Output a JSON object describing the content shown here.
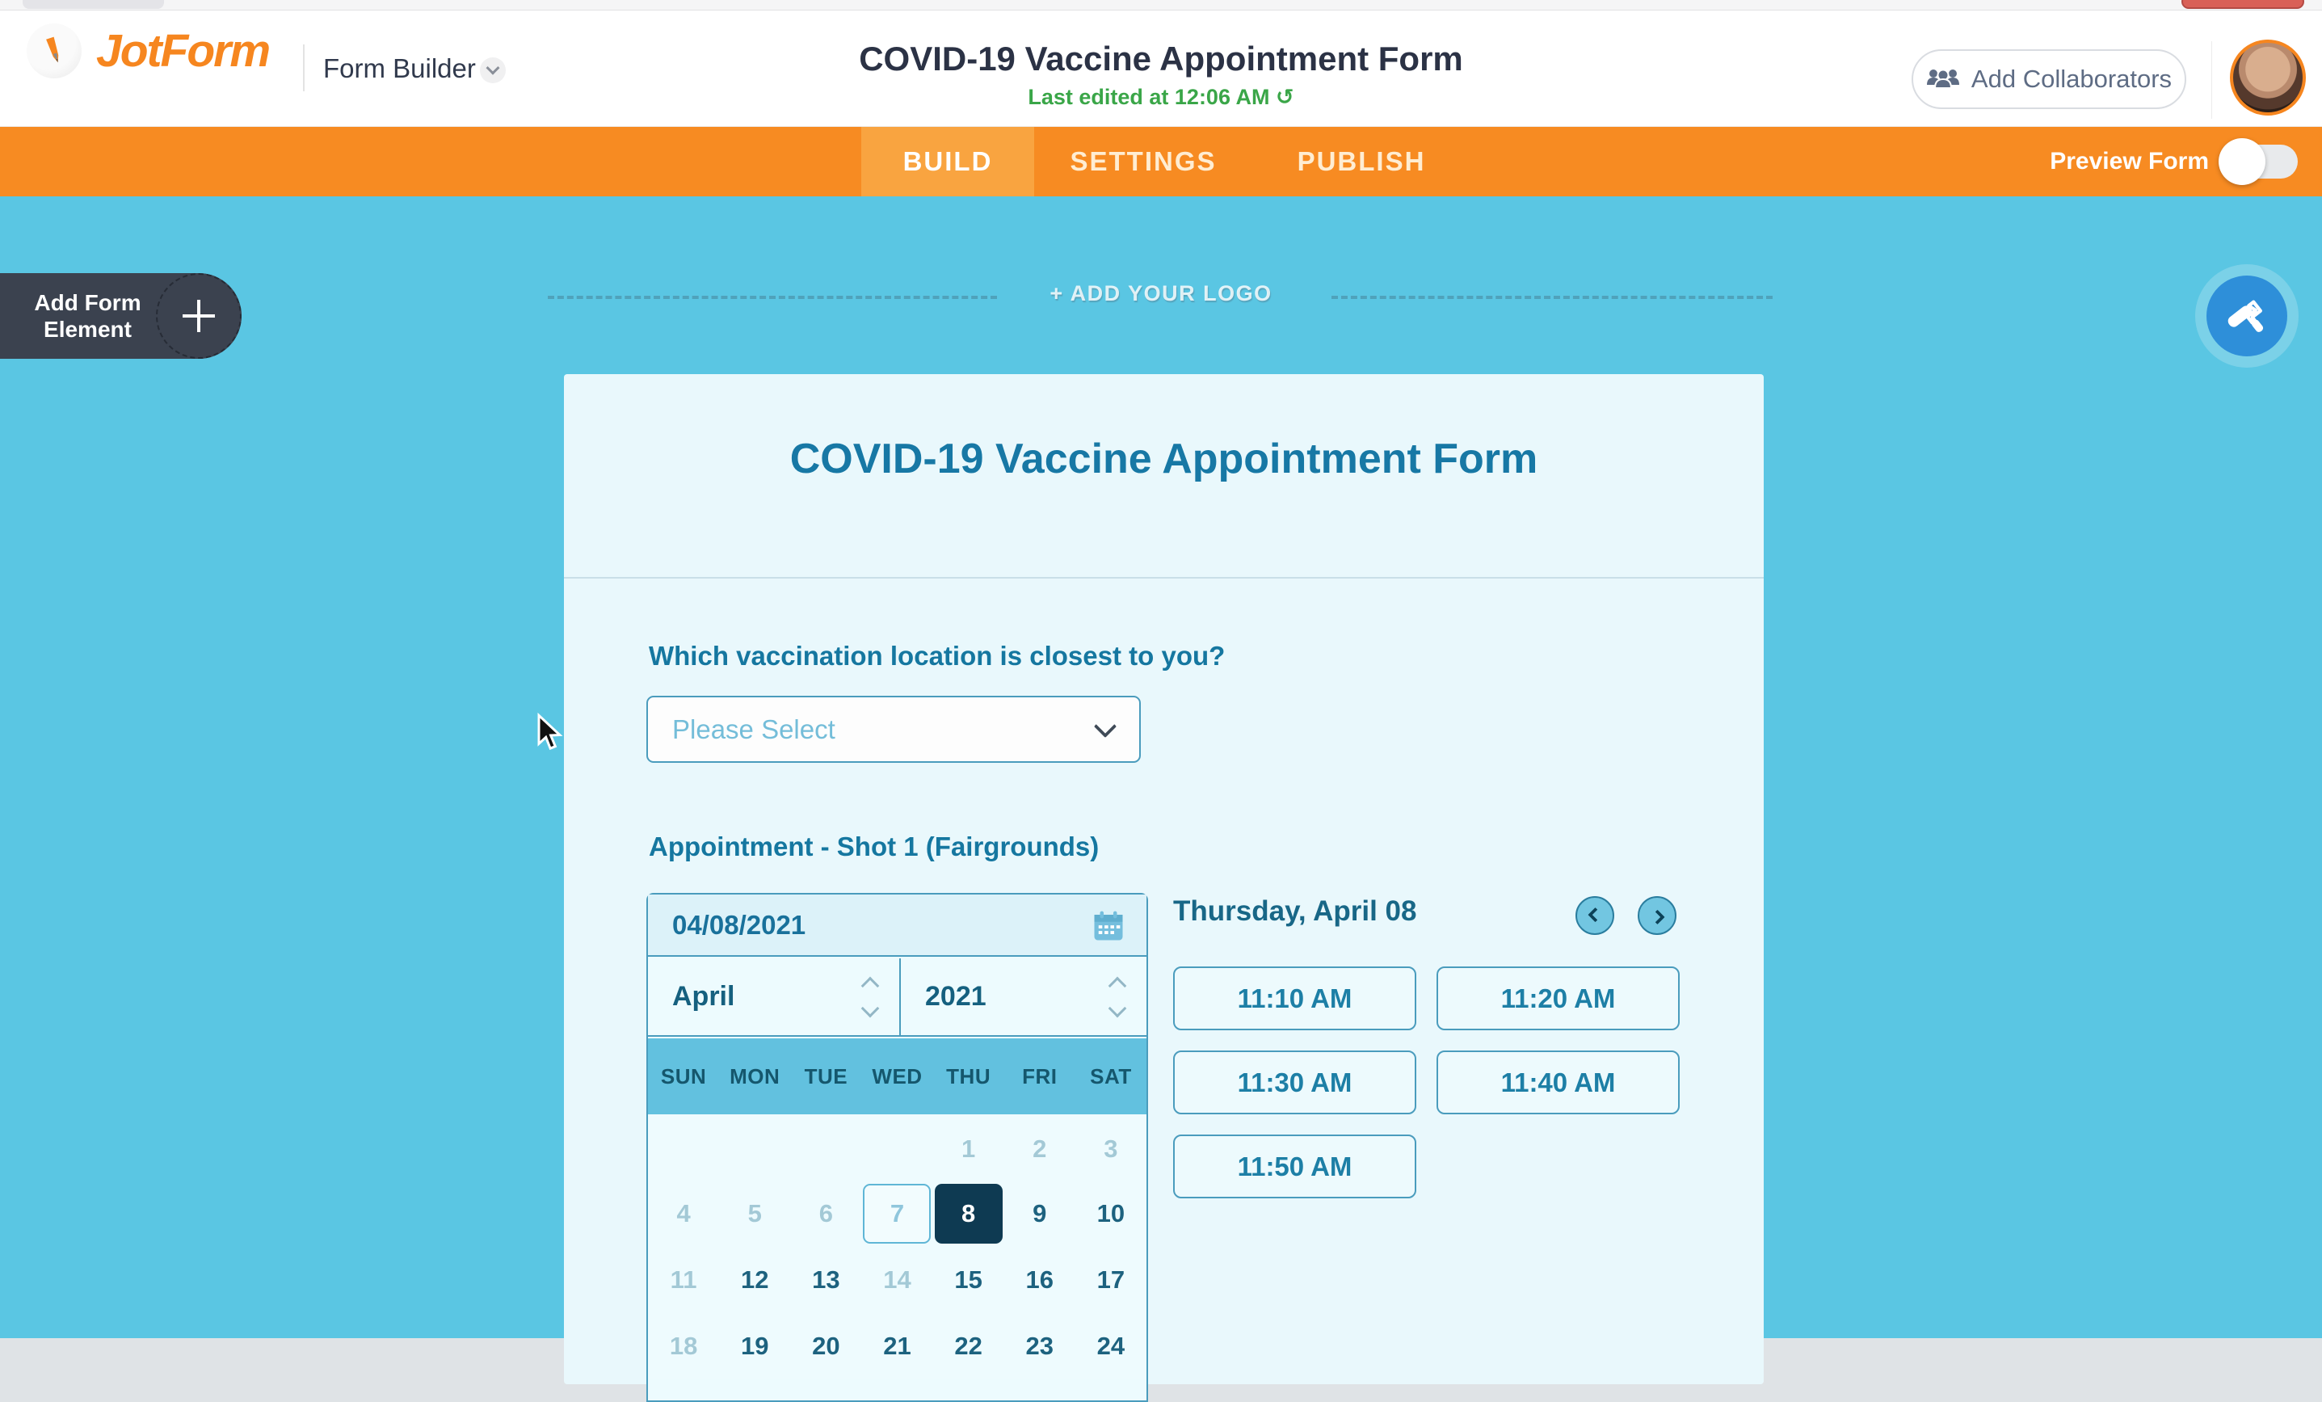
{
  "header": {
    "brand": "JotForm",
    "product": "Form Builder",
    "title": "COVID-19 Vaccine Appointment Form",
    "last_edited": "Last edited at 12:06 AM",
    "add_collaborators": "Add Collaborators"
  },
  "nav": {
    "tabs": [
      {
        "label": "BUILD",
        "active": true
      },
      {
        "label": "SETTINGS",
        "active": false
      },
      {
        "label": "PUBLISH",
        "active": false
      }
    ],
    "preview_form_label": "Preview Form",
    "preview_enabled": false
  },
  "canvas": {
    "add_form_element": {
      "line1": "Add Form",
      "line2": "Element"
    },
    "add_logo_label": "+ ADD YOUR LOGO",
    "form": {
      "title": "COVID-19 Vaccine Appointment Form",
      "location_question": {
        "label": "Which vaccination location is closest to you?",
        "selected_value": "Please Select"
      },
      "appointment": {
        "label": "Appointment - Shot 1 (Fairgrounds)",
        "date_value": "04/08/2021",
        "month": "April",
        "year": "2021",
        "weekdays": [
          "SUN",
          "MON",
          "TUE",
          "WED",
          "THU",
          "FRI",
          "SAT"
        ],
        "weeks": [
          [
            {
              "day": "",
              "state": "empty"
            },
            {
              "day": "",
              "state": "empty"
            },
            {
              "day": "",
              "state": "empty"
            },
            {
              "day": "",
              "state": "empty"
            },
            {
              "day": "1",
              "state": "disabled"
            },
            {
              "day": "2",
              "state": "disabled"
            },
            {
              "day": "3",
              "state": "disabled"
            }
          ],
          [
            {
              "day": "4",
              "state": "disabled"
            },
            {
              "day": "5",
              "state": "disabled"
            },
            {
              "day": "6",
              "state": "disabled"
            },
            {
              "day": "7",
              "state": "today"
            },
            {
              "day": "8",
              "state": "selected"
            },
            {
              "day": "9",
              "state": "available"
            },
            {
              "day": "10",
              "state": "available"
            }
          ],
          [
            {
              "day": "11",
              "state": "disabled"
            },
            {
              "day": "12",
              "state": "available"
            },
            {
              "day": "13",
              "state": "available"
            },
            {
              "day": "14",
              "state": "disabled"
            },
            {
              "day": "15",
              "state": "available"
            },
            {
              "day": "16",
              "state": "available"
            },
            {
              "day": "17",
              "state": "available"
            }
          ],
          [
            {
              "day": "18",
              "state": "disabled"
            },
            {
              "day": "19",
              "state": "available"
            },
            {
              "day": "20",
              "state": "available"
            },
            {
              "day": "21",
              "state": "available"
            },
            {
              "day": "22",
              "state": "available"
            },
            {
              "day": "23",
              "state": "available"
            },
            {
              "day": "24",
              "state": "available"
            }
          ]
        ],
        "selected_day_heading": "Thursday, April 08",
        "time_slots": [
          "11:10 AM",
          "11:20 AM",
          "11:30 AM",
          "11:40 AM",
          "11:50 AM"
        ]
      }
    }
  },
  "icons": {
    "history": "↺"
  },
  "colors": {
    "orange": "#f78b22",
    "orange_active": "#f9a440",
    "brand_orange": "#f6861f",
    "canvas_blue": "#5ac6e3",
    "card_bg": "#e9f8fc",
    "teal_text": "#1577a0",
    "teal_border": "#4a9cbd",
    "navy_selected": "#0e3a52",
    "green": "#3aa648",
    "fab_blue": "#2e8fd9",
    "dark_button": "#3b424f",
    "weekday_bg": "#62c1df",
    "date_row_bg": "#dcf2f9",
    "widget_bg": "#edfbfe",
    "muted_day": "#a3c9d6",
    "day_text": "#1d627f"
  }
}
